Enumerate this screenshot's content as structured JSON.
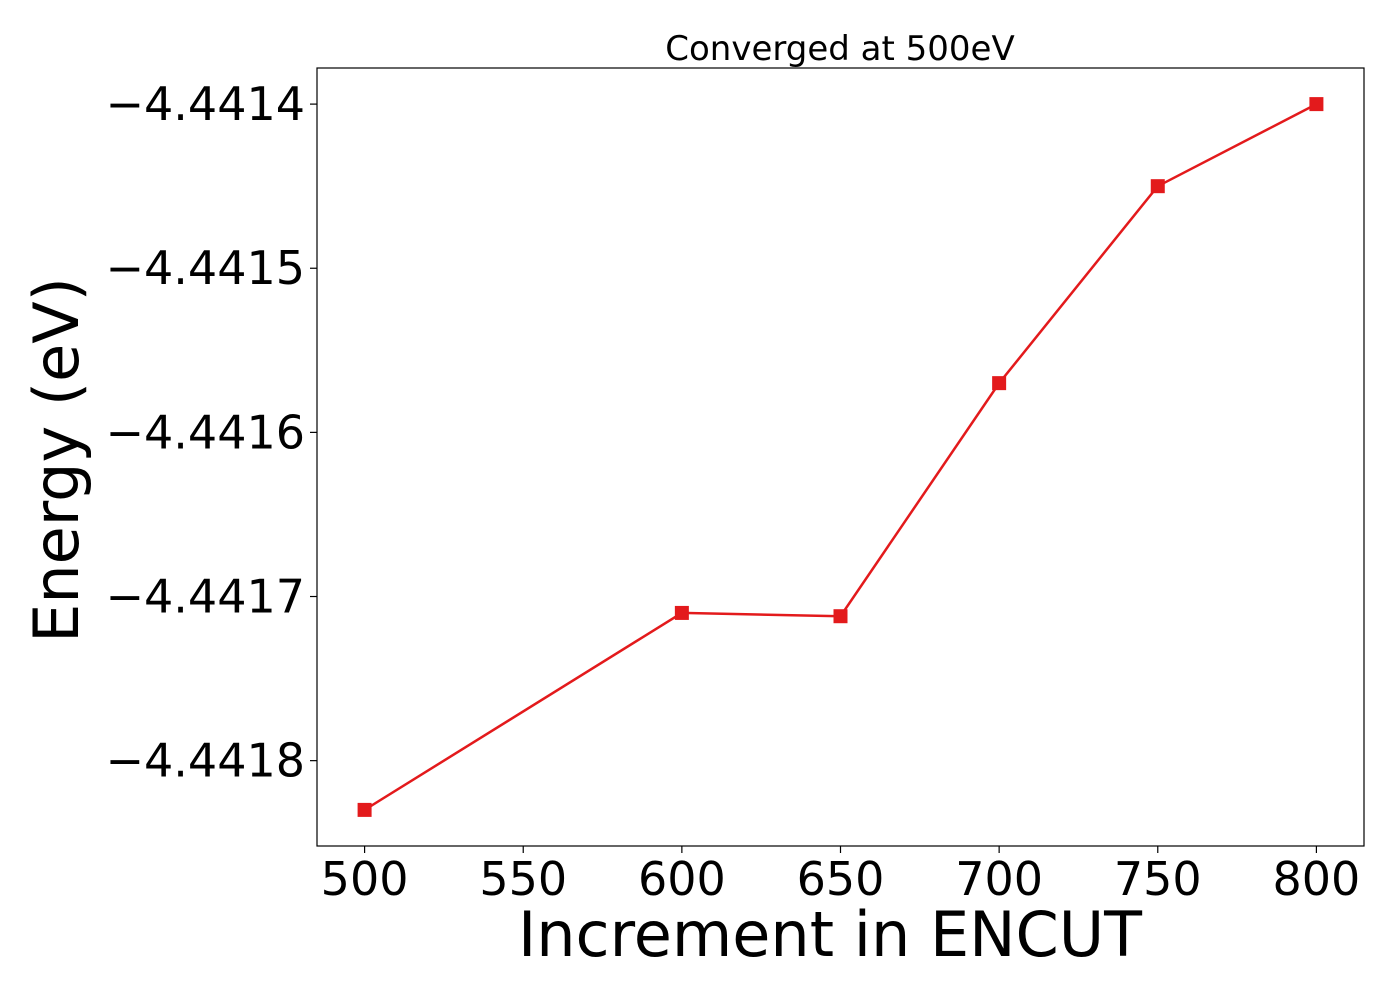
{
  "chart_data": {
    "type": "line",
    "title": "Converged at 500eV",
    "xlabel": "Increment in ENCUT",
    "ylabel": "Energy (eV)",
    "x": [
      500,
      600,
      650,
      700,
      750,
      800
    ],
    "series": [
      {
        "values": [
          -4.44183,
          -4.44171,
          -4.441712,
          -4.44157,
          -4.44145,
          -4.4414
        ],
        "color": "#e31a1c",
        "marker": "square"
      }
    ],
    "xticks": [
      500,
      550,
      600,
      650,
      700,
      750,
      800
    ],
    "xtick_labels": [
      "500",
      "550",
      "600",
      "650",
      "700",
      "750",
      "800"
    ],
    "yticks": [
      -4.4418,
      -4.4417,
      -4.4416,
      -4.4415,
      -4.4414
    ],
    "ytick_labels": [
      "−4.4418",
      "−4.4417",
      "−4.4416",
      "−4.4415",
      "−4.4414"
    ],
    "xlim": [
      485,
      815
    ],
    "ylim": [
      -4.441852,
      -4.441378
    ],
    "grid": false,
    "legend": "none"
  }
}
